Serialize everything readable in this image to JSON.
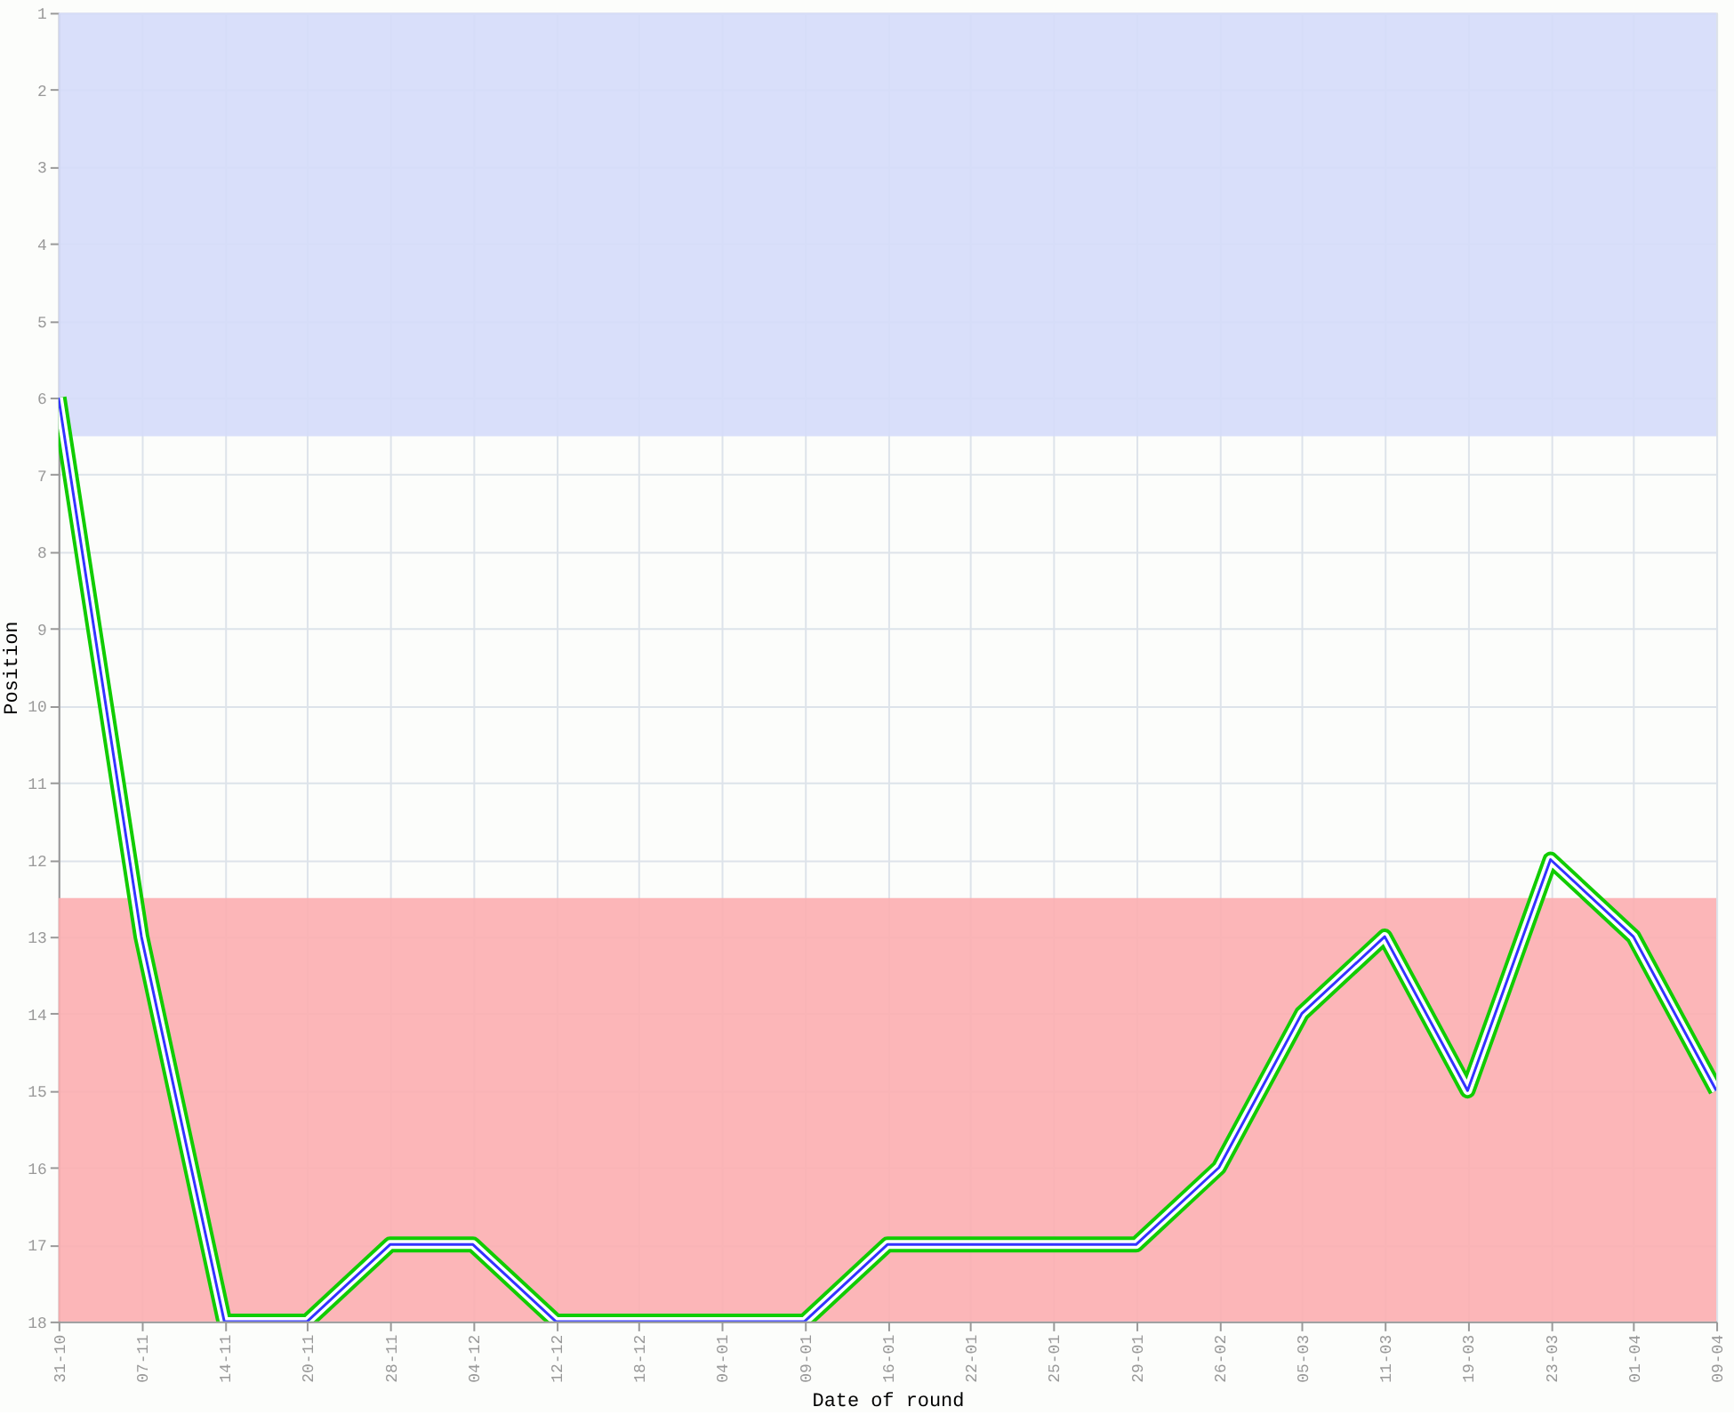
{
  "chart_data": {
    "type": "line",
    "xlabel": "Date of round",
    "ylabel": "Position",
    "categories": [
      "31-10",
      "07-11",
      "14-11",
      "20-11",
      "28-11",
      "04-12",
      "12-12",
      "18-12",
      "04-01",
      "09-01",
      "16-01",
      "22-01",
      "25-01",
      "29-01",
      "26-02",
      "05-03",
      "11-03",
      "19-03",
      "23-03",
      "01-04",
      "09-04"
    ],
    "series": [
      {
        "color": "#3333ff",
        "values": [
          6,
          13,
          18,
          18,
          17,
          17,
          18,
          18,
          18,
          18,
          17,
          17,
          17,
          17,
          16,
          14,
          13,
          15,
          12,
          13,
          15
        ]
      }
    ],
    "ylim": [
      18,
      1
    ],
    "yticks": [
      1,
      2,
      3,
      4,
      5,
      6,
      7,
      8,
      9,
      10,
      11,
      12,
      13,
      14,
      15,
      16,
      17,
      18
    ],
    "bands": [
      {
        "axis": "y",
        "from": 1,
        "to": 6.5,
        "color": "#d5dcf9"
      },
      {
        "axis": "y",
        "from": 12.5,
        "to": 18,
        "color": "#fcaeb0"
      }
    ],
    "grid": true,
    "marker": "none",
    "line_style": "solid"
  }
}
